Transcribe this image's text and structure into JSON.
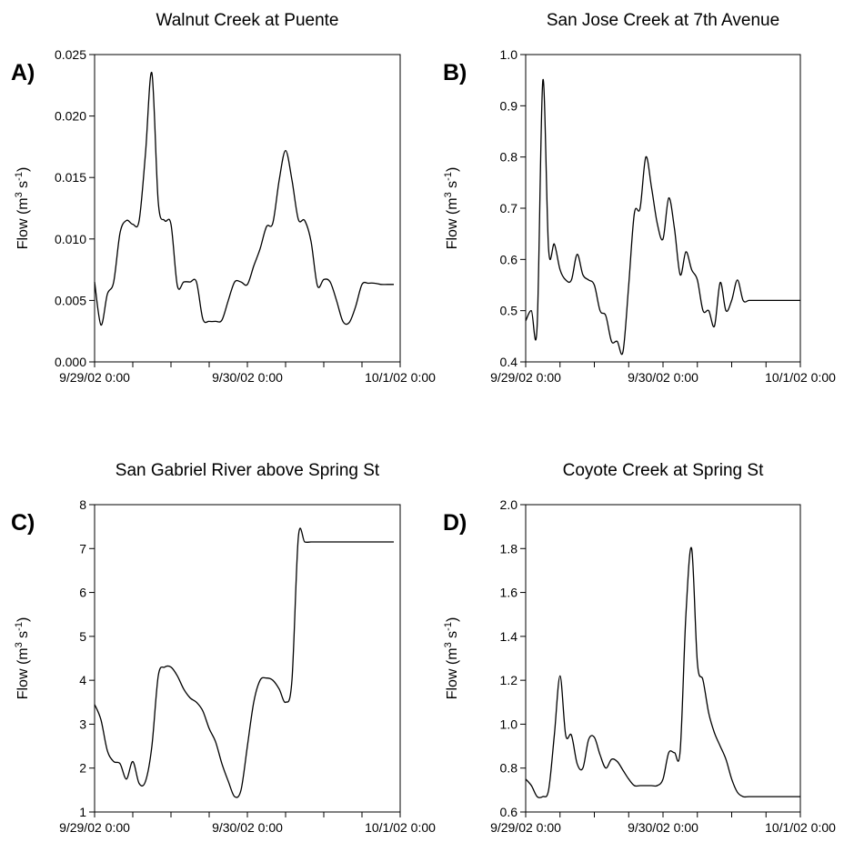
{
  "chart_data": [
    {
      "type": "line",
      "panel_letter": "A)",
      "title": "Walnut Creek at Puente",
      "ylabel": {
        "prefix": "Flow (m",
        "sup1": "3",
        "mid": " s",
        "sup2": "-1",
        "suffix": ")"
      },
      "xlim": [
        "9/29/02 0:00",
        "10/1/02 0:00"
      ],
      "xticks": [
        "9/29/02 0:00",
        "9/30/02 0:00",
        "10/1/02 0:00"
      ],
      "xtick_labels": [
        "9/29/02 0:00",
        "9/30/02 0:00",
        "10/1/02 0:00"
      ],
      "ylim": [
        0,
        0.025
      ],
      "yticks": [
        0,
        0.005,
        0.01,
        0.015,
        0.02,
        0.025
      ],
      "ytick_labels": [
        "0.000",
        "0.005",
        "0.010",
        "0.015",
        "0.020",
        "0.025"
      ],
      "grid": false,
      "series": [
        {
          "color": "#000000",
          "x": [
            "9/29/02 0:00",
            "9/29/02 1:00",
            "9/29/02 2:00",
            "9/29/02 3:00",
            "9/29/02 4:00",
            "9/29/02 5:00",
            "9/29/02 6:00",
            "9/29/02 7:00",
            "9/29/02 8:00",
            "9/29/02 9:00",
            "9/29/02 10:00",
            "9/29/02 11:00",
            "9/29/02 12:00",
            "9/29/02 13:00",
            "9/29/02 14:00",
            "9/29/02 15:00",
            "9/29/02 16:00",
            "9/29/02 17:00",
            "9/29/02 18:00",
            "9/29/02 19:00",
            "9/29/02 20:00",
            "9/29/02 21:00",
            "9/29/02 22:00",
            "9/29/02 23:00",
            "9/30/02 0:00",
            "9/30/02 1:00",
            "9/30/02 2:00",
            "9/30/02 3:00",
            "9/30/02 4:00",
            "9/30/02 5:00",
            "9/30/02 6:00",
            "9/30/02 7:00",
            "9/30/02 8:00",
            "9/30/02 9:00",
            "9/30/02 10:00",
            "9/30/02 11:00",
            "9/30/02 12:00",
            "9/30/02 13:00",
            "9/30/02 14:00",
            "9/30/02 15:00",
            "9/30/02 16:00",
            "9/30/02 17:00",
            "9/30/02 18:00",
            "9/30/02 19:00",
            "9/30/02 20:00",
            "9/30/02 21:00",
            "9/30/02 22:00",
            "9/30/02 23:00"
          ],
          "y": [
            0.0065,
            0.003,
            0.0055,
            0.0065,
            0.0105,
            0.0115,
            0.0112,
            0.0115,
            0.017,
            0.0235,
            0.013,
            0.0115,
            0.0112,
            0.0062,
            0.0065,
            0.0065,
            0.0065,
            0.0035,
            0.0033,
            0.0033,
            0.0034,
            0.005,
            0.0065,
            0.0065,
            0.0063,
            0.0078,
            0.0092,
            0.011,
            0.0113,
            0.0148,
            0.0172,
            0.0148,
            0.0116,
            0.0115,
            0.0098,
            0.0062,
            0.0067,
            0.0065,
            0.005,
            0.0033,
            0.0032,
            0.0045,
            0.0063,
            0.0064,
            0.0064,
            0.0063,
            0.0063,
            0.0063
          ]
        }
      ]
    },
    {
      "type": "line",
      "panel_letter": "B)",
      "title": "San Jose Creek at 7th Avenue",
      "ylabel": {
        "prefix": "Flow (m",
        "sup1": "3",
        "mid": " s",
        "sup2": "-1",
        "suffix": ")"
      },
      "xlim": [
        "9/29/02 0:00",
        "10/1/02 0:00"
      ],
      "xticks": [
        "9/29/02 0:00",
        "9/30/02 0:00",
        "10/1/02 0:00"
      ],
      "xtick_labels": [
        "9/29/02 0:00",
        "9/30/02 0:00",
        "10/1/02 0:00"
      ],
      "ylim": [
        0.4,
        1.0
      ],
      "yticks": [
        0.4,
        0.5,
        0.6,
        0.7,
        0.8,
        0.9,
        1.0
      ],
      "ytick_labels": [
        "0.4",
        "0.5",
        "0.6",
        "0.7",
        "0.8",
        "0.9",
        "1.0"
      ],
      "grid": false,
      "series": [
        {
          "color": "#000000",
          "x": [
            "9/29/02 0:00",
            "9/29/02 1:00",
            "9/29/02 2:00",
            "9/29/02 3:00",
            "9/29/02 4:00",
            "9/29/02 5:00",
            "9/29/02 6:00",
            "9/29/02 7:00",
            "9/29/02 8:00",
            "9/29/02 9:00",
            "9/29/02 10:00",
            "9/29/02 11:00",
            "9/29/02 12:00",
            "9/29/02 13:00",
            "9/29/02 14:00",
            "9/29/02 15:00",
            "9/29/02 16:00",
            "9/29/02 17:00",
            "9/29/02 18:00",
            "9/29/02 19:00",
            "9/29/02 20:00",
            "9/29/02 21:00",
            "9/29/02 22:00",
            "9/29/02 23:00",
            "9/30/02 0:00",
            "9/30/02 1:00",
            "9/30/02 2:00",
            "9/30/02 3:00",
            "9/30/02 4:00",
            "9/30/02 5:00",
            "9/30/02 6:00",
            "9/30/02 7:00",
            "9/30/02 8:00",
            "9/30/02 9:00",
            "9/30/02 10:00",
            "9/30/02 11:00",
            "9/30/02 12:00",
            "9/30/02 13:00",
            "9/30/02 14:00",
            "9/30/02 15:00",
            "9/30/02 16:00",
            "9/30/02 17:00",
            "9/30/02 18:00",
            "9/30/02 19:00",
            "9/30/02 20:00",
            "9/30/02 21:00",
            "9/30/02 22:00",
            "9/30/02 23:00",
            "10/1/02 0:00"
          ],
          "y": [
            0.48,
            0.5,
            0.47,
            0.95,
            0.62,
            0.63,
            0.58,
            0.56,
            0.56,
            0.61,
            0.57,
            0.56,
            0.55,
            0.5,
            0.49,
            0.44,
            0.44,
            0.42,
            0.55,
            0.69,
            0.7,
            0.8,
            0.74,
            0.67,
            0.64,
            0.72,
            0.66,
            0.57,
            0.615,
            0.58,
            0.56,
            0.5,
            0.5,
            0.47,
            0.555,
            0.5,
            0.52,
            0.56,
            0.52,
            0.52,
            0.52,
            0.52,
            0.52,
            0.52,
            0.52,
            0.52,
            0.52,
            0.52,
            0.52
          ]
        }
      ]
    },
    {
      "type": "line",
      "panel_letter": "C)",
      "title": "San Gabriel River above Spring St",
      "ylabel": {
        "prefix": "Flow (m",
        "sup1": "3",
        "mid": " s",
        "sup2": "-1",
        "suffix": ")"
      },
      "xlim": [
        "9/29/02 0:00",
        "10/1/02 0:00"
      ],
      "xticks": [
        "9/29/02 0:00",
        "9/30/02 0:00",
        "10/1/02 0:00"
      ],
      "xtick_labels": [
        "9/29/02 0:00",
        "9/30/02 0:00",
        "10/1/02 0:00"
      ],
      "ylim": [
        1,
        8
      ],
      "yticks": [
        1,
        2,
        3,
        4,
        5,
        6,
        7,
        8
      ],
      "ytick_labels": [
        "1",
        "2",
        "3",
        "4",
        "5",
        "6",
        "7",
        "8"
      ],
      "grid": false,
      "series": [
        {
          "color": "#000000",
          "x": [
            "9/29/02 0:00",
            "9/29/02 1:00",
            "9/29/02 2:00",
            "9/29/02 3:00",
            "9/29/02 4:00",
            "9/29/02 5:00",
            "9/29/02 6:00",
            "9/29/02 7:00",
            "9/29/02 8:00",
            "9/29/02 9:00",
            "9/29/02 10:00",
            "9/29/02 11:00",
            "9/29/02 12:00",
            "9/29/02 13:00",
            "9/29/02 14:00",
            "9/29/02 15:00",
            "9/29/02 16:00",
            "9/29/02 17:00",
            "9/29/02 18:00",
            "9/29/02 19:00",
            "9/29/02 20:00",
            "9/29/02 21:00",
            "9/29/02 22:00",
            "9/29/02 23:00",
            "9/30/02 0:00",
            "9/30/02 1:00",
            "9/30/02 2:00",
            "9/30/02 3:00",
            "9/30/02 4:00",
            "9/30/02 5:00",
            "9/30/02 6:00",
            "9/30/02 7:00",
            "9/30/02 8:00",
            "9/30/02 9:00",
            "9/30/02 10:00",
            "9/30/02 11:00",
            "9/30/02 12:00",
            "9/30/02 13:00",
            "9/30/02 14:00",
            "9/30/02 15:00",
            "9/30/02 16:00",
            "9/30/02 17:00",
            "9/30/02 18:00",
            "9/30/02 19:00",
            "9/30/02 20:00",
            "9/30/02 21:00",
            "9/30/02 22:00",
            "9/30/02 23:00"
          ],
          "y": [
            3.45,
            3.1,
            2.4,
            2.15,
            2.1,
            1.75,
            2.15,
            1.65,
            1.7,
            2.5,
            4.1,
            4.3,
            4.3,
            4.1,
            3.8,
            3.6,
            3.5,
            3.3,
            2.9,
            2.6,
            2.1,
            1.7,
            1.35,
            1.5,
            2.5,
            3.5,
            4.0,
            4.05,
            4.0,
            3.8,
            3.5,
            4.0,
            7.25,
            7.15,
            7.15,
            7.15,
            7.15,
            7.15,
            7.15,
            7.15,
            7.15,
            7.15,
            7.15,
            7.15,
            7.15,
            7.15,
            7.15,
            7.15
          ]
        }
      ]
    },
    {
      "type": "line",
      "panel_letter": "D)",
      "title": "Coyote Creek at Spring St",
      "ylabel": {
        "prefix": "Flow (m",
        "sup1": "3",
        "mid": " s",
        "sup2": "-1",
        "suffix": ")"
      },
      "xlim": [
        "9/29/02 0:00",
        "10/1/02 0:00"
      ],
      "xticks": [
        "9/29/02 0:00",
        "9/30/02 0:00",
        "10/1/02 0:00"
      ],
      "xtick_labels": [
        "9/29/02 0:00",
        "9/30/02 0:00",
        "10/1/02 0:00"
      ],
      "ylim": [
        0.6,
        2.0
      ],
      "yticks": [
        0.6,
        0.8,
        1.0,
        1.2,
        1.4,
        1.6,
        1.8,
        2.0
      ],
      "ytick_labels": [
        "0.6",
        "0.8",
        "1.0",
        "1.2",
        "1.4",
        "1.6",
        "1.8",
        "2.0"
      ],
      "grid": false,
      "series": [
        {
          "color": "#000000",
          "x": [
            "9/29/02 0:00",
            "9/29/02 1:00",
            "9/29/02 2:00",
            "9/29/02 3:00",
            "9/29/02 4:00",
            "9/29/02 5:00",
            "9/29/02 6:00",
            "9/29/02 7:00",
            "9/29/02 8:00",
            "9/29/02 9:00",
            "9/29/02 10:00",
            "9/29/02 11:00",
            "9/29/02 12:00",
            "9/29/02 13:00",
            "9/29/02 14:00",
            "9/29/02 15:00",
            "9/29/02 16:00",
            "9/29/02 17:00",
            "9/29/02 18:00",
            "9/29/02 19:00",
            "9/29/02 20:00",
            "9/29/02 21:00",
            "9/29/02 22:00",
            "9/29/02 23:00",
            "9/30/02 0:00",
            "9/30/02 1:00",
            "9/30/02 2:00",
            "9/30/02 3:00",
            "9/30/02 4:00",
            "9/30/02 5:00",
            "9/30/02 6:00",
            "9/30/02 7:00",
            "9/30/02 8:00",
            "9/30/02 9:00",
            "9/30/02 10:00",
            "9/30/02 11:00",
            "9/30/02 12:00",
            "9/30/02 13:00",
            "9/30/02 14:00",
            "9/30/02 15:00",
            "9/30/02 16:00",
            "9/30/02 17:00",
            "9/30/02 18:00",
            "9/30/02 19:00",
            "9/30/02 20:00",
            "9/30/02 21:00",
            "9/30/02 22:00",
            "9/30/02 23:00",
            "10/1/02 0:00"
          ],
          "y": [
            0.75,
            0.72,
            0.67,
            0.67,
            0.7,
            0.95,
            1.22,
            0.95,
            0.95,
            0.82,
            0.8,
            0.93,
            0.94,
            0.86,
            0.8,
            0.84,
            0.83,
            0.79,
            0.75,
            0.72,
            0.72,
            0.72,
            0.72,
            0.72,
            0.75,
            0.87,
            0.87,
            0.88,
            1.5,
            1.8,
            1.28,
            1.2,
            1.05,
            0.96,
            0.9,
            0.84,
            0.75,
            0.69,
            0.67,
            0.67,
            0.67,
            0.67,
            0.67,
            0.67,
            0.67,
            0.67,
            0.67,
            0.67,
            0.67
          ]
        }
      ]
    }
  ]
}
